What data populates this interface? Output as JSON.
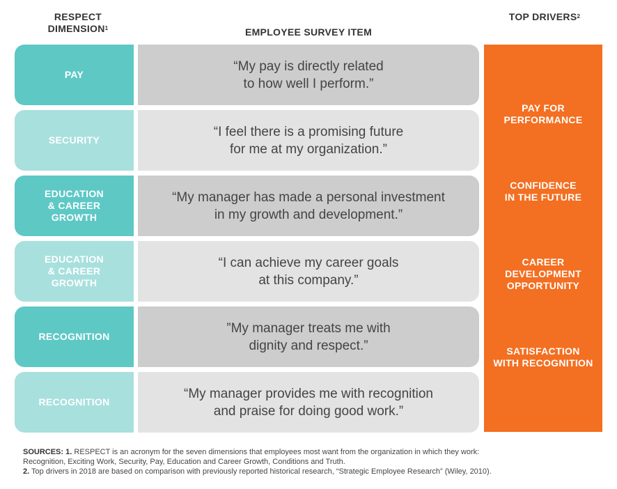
{
  "headers": {
    "dimension": "RESPECT DIMENSION",
    "dimension_sup": "1",
    "item": "EMPLOYEE SURVEY ITEM",
    "drivers": "TOP DRIVERS",
    "drivers_sup": "2"
  },
  "rows": [
    {
      "dimension": "PAY",
      "item": "“My pay is directly related\nto how well I perform.”"
    },
    {
      "dimension": "SECURITY",
      "item": "“I feel there is a promising future\nfor me at my organization.”"
    },
    {
      "dimension": "EDUCATION\n& CAREER\nGROWTH",
      "item": "“My manager has made a personal investment\nin my growth and development.”"
    },
    {
      "dimension": "EDUCATION\n& CAREER\nGROWTH",
      "item": "“I can achieve my career goals\nat this company.”"
    },
    {
      "dimension": "RECOGNITION",
      "item": "”My manager treats me with\ndignity and respect.”"
    },
    {
      "dimension": "RECOGNITION",
      "item": "“My manager provides me with recognition\nand praise for doing good work.”"
    }
  ],
  "drivers": [
    "PAY FOR\nPERFORMANCE",
    "CONFIDENCE\nIN THE FUTURE",
    "CAREER\nDEVELOPMENT\nOPPORTUNITY",
    "SATISFACTION\nWITH RECOGNITION"
  ],
  "footnotes": {
    "label": "SOURCES:",
    "note1_num": "1.",
    "note1": "RESPECT is an acronym for the seven dimensions that employees most want from the organization in which they work: Recognition, Exciting Work, Security, Pay, Education and Career Growth, Conditions and Truth.",
    "note2_num": "2.",
    "note2": "Top drivers in 2018 are based on comparison with previously reported historical research, “Strategic Employee Research” (Wiley, 2010)."
  },
  "colors": {
    "dimension_dark": "#5ec8c5",
    "dimension_light": "#a8e0de",
    "item_dark": "#cdcdcd",
    "item_light": "#e3e3e3",
    "drivers": "#f36f21"
  }
}
